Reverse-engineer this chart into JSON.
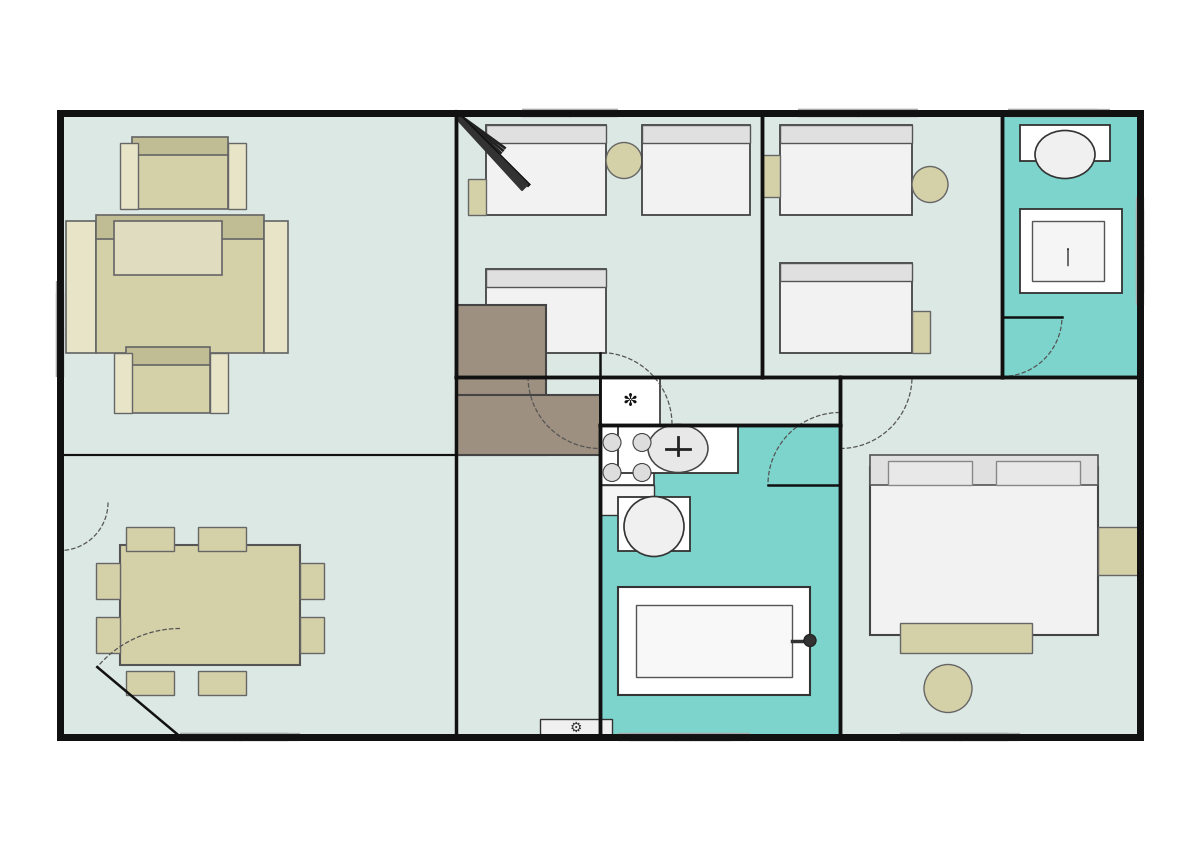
{
  "bg_color": "#ffffff",
  "wall_color": "#111111",
  "floor_color": "#dce8e3",
  "bath_color": "#7dd4cc",
  "sofa_color": "#d4d0a8",
  "sofa_dark": "#c0bc94",
  "sofa_light": "#e8e4c8",
  "bed_color": "#f2f2f2",
  "bed_pillow": "#e0e0e0",
  "table_color": "#d4d0a8",
  "kitchen_island": "#9e9080",
  "wall_lw": 5.0,
  "inner_lw": 2.5,
  "win_lw": 5.0
}
